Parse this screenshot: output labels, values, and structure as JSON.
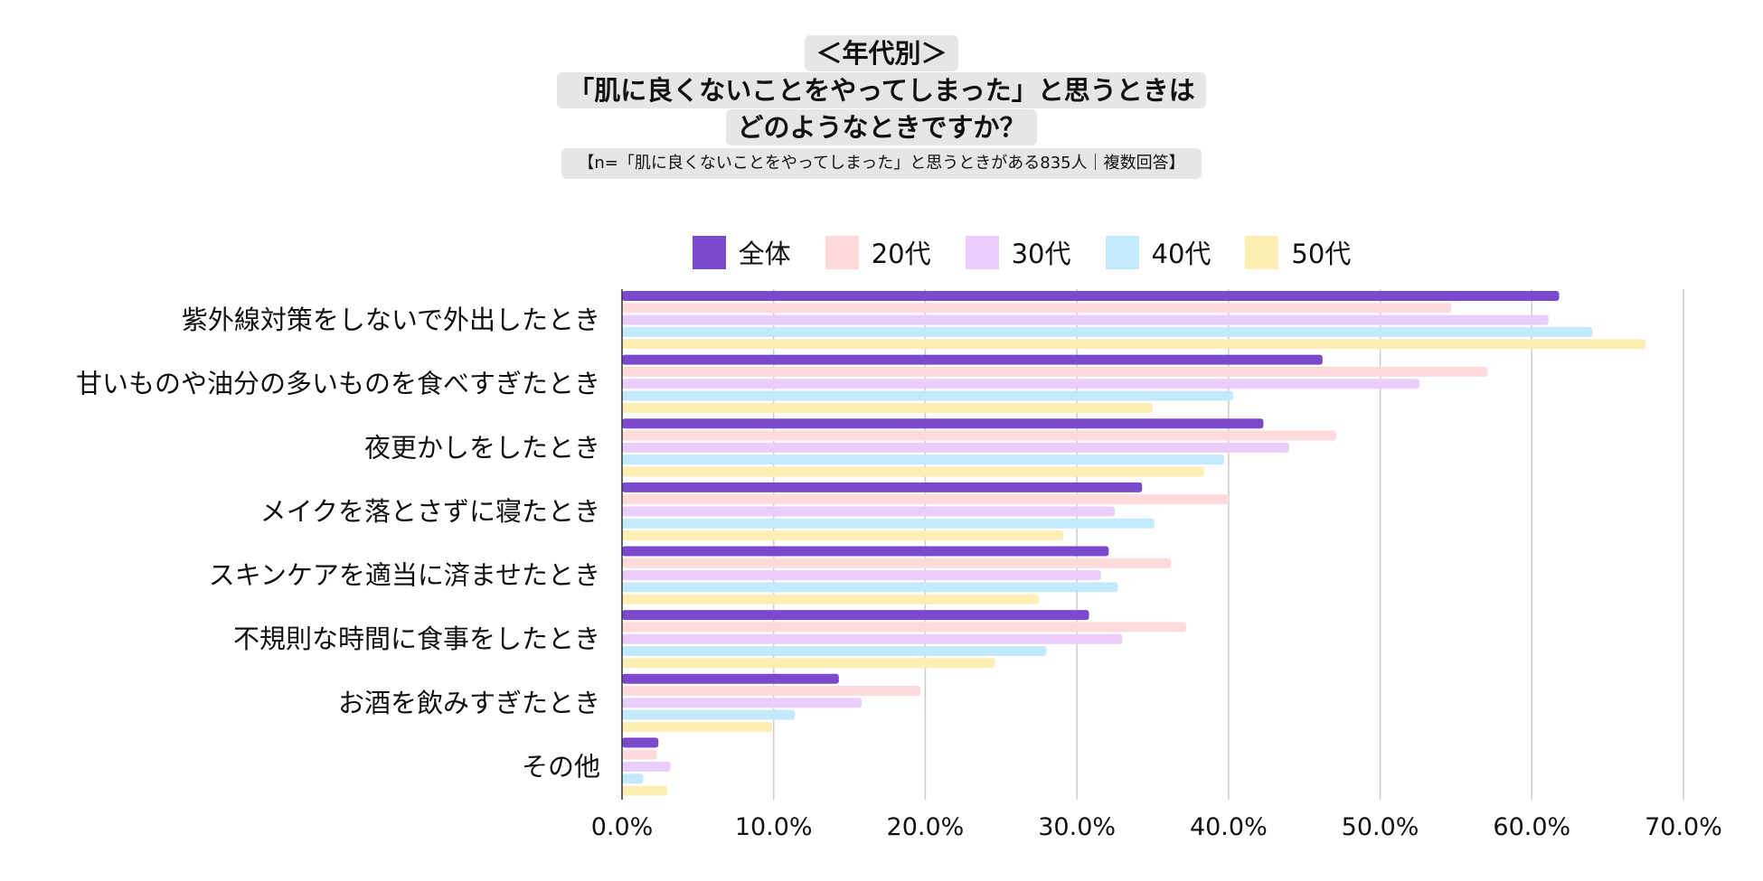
{
  "chart_data": {
    "type": "bar",
    "orientation": "horizontal",
    "title": "＜年代別＞",
    "title_lines": [
      "＜年代別＞",
      "「肌に良くないことをやってしまった」と思うときは",
      "どのようなときですか？"
    ],
    "subtitle": "【n=「肌に良くないことをやってしまった」と思うときがある835人｜複数回答】",
    "categories": [
      "紫外線対策をしないで外出したとき",
      "甘いものや油分の多いものを食べすぎたとき",
      "夜更かしをしたとき",
      "メイクを落とさずに寝たとき",
      "スキンケアを適当に済ませたとき",
      "不規則な時間に食事をしたとき",
      "お酒を飲みすぎたとき",
      "その他"
    ],
    "series": [
      {
        "name": "全体",
        "color": "#7b49cc",
        "values": [
          61.8,
          46.2,
          42.3,
          34.3,
          32.1,
          30.8,
          14.3,
          2.4
        ]
      },
      {
        "name": "20代",
        "color": "#ffdadd",
        "values": [
          54.7,
          57.1,
          47.1,
          40.0,
          36.2,
          37.2,
          19.7,
          2.3
        ]
      },
      {
        "name": "30代",
        "color": "#ebcdfb",
        "values": [
          61.1,
          52.6,
          44.0,
          32.5,
          31.6,
          33.0,
          15.8,
          3.2
        ]
      },
      {
        "name": "40代",
        "color": "#c2e9fc",
        "values": [
          64.0,
          40.3,
          39.7,
          35.1,
          32.7,
          28.0,
          11.4,
          1.4
        ]
      },
      {
        "name": "50代",
        "color": "#fdeeb4",
        "values": [
          67.5,
          35.0,
          38.4,
          29.1,
          27.5,
          24.6,
          9.9,
          3.0
        ]
      }
    ],
    "xlim": [
      0,
      70
    ],
    "xticks": [
      "0.0%",
      "10.0%",
      "20.0%",
      "30.0%",
      "40.0%",
      "50.0%",
      "60.0%",
      "70.0%"
    ],
    "grid": true,
    "legend_position": "top"
  }
}
